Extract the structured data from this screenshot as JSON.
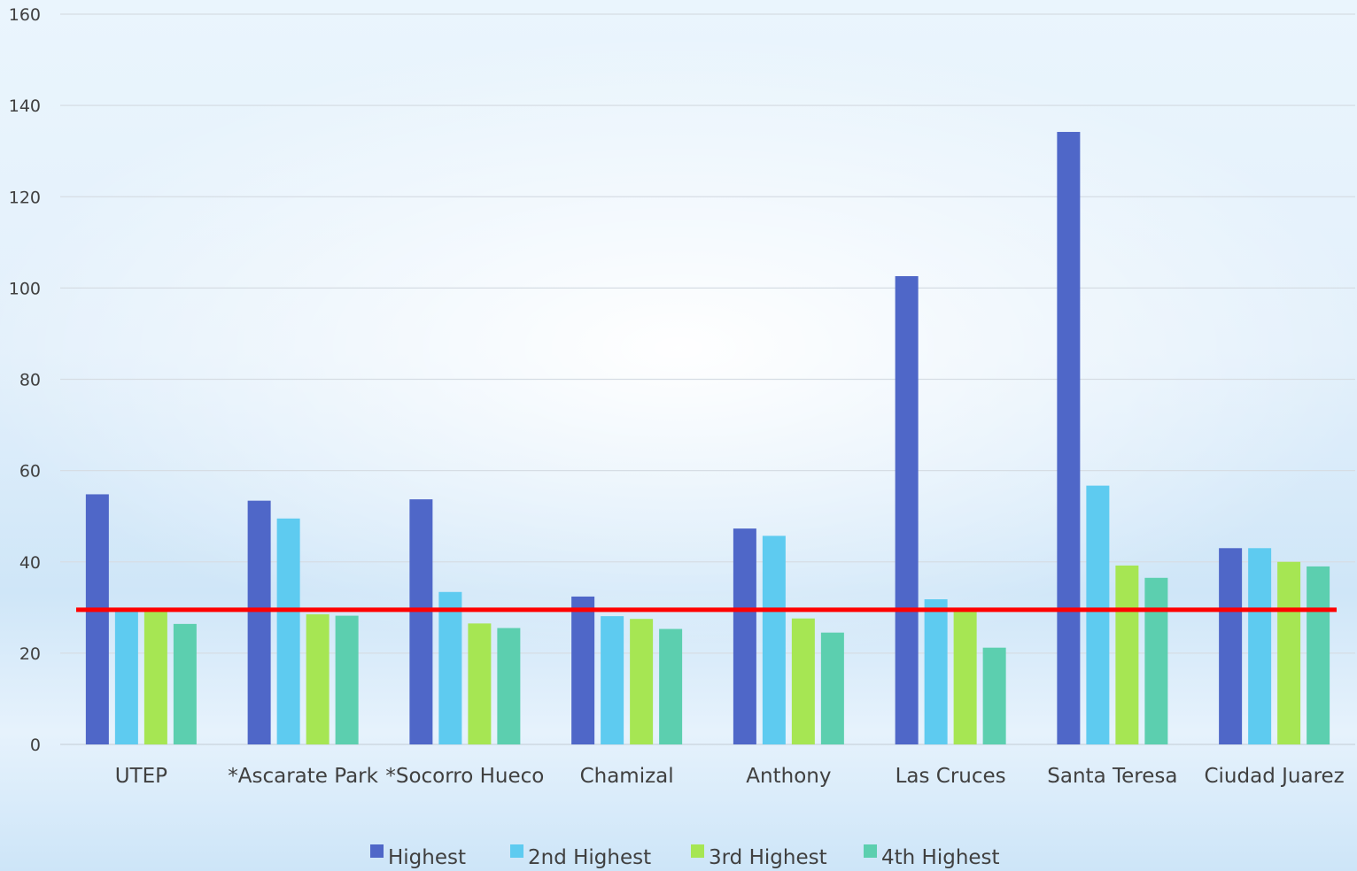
{
  "chart_data": {
    "type": "bar",
    "title": "",
    "xlabel": "",
    "ylabel": "",
    "ylim": [
      0,
      160
    ],
    "yticks": [
      0,
      20,
      40,
      60,
      80,
      100,
      120,
      140,
      160
    ],
    "grid": true,
    "legend_position": "bottom",
    "categories": [
      "UTEP",
      "*Ascarate Park",
      "*Socorro Hueco",
      "Chamizal",
      "Anthony",
      "Las Cruces",
      "Santa Teresa",
      "Ciudad Juarez"
    ],
    "series": [
      {
        "name": "Highest",
        "color": "#4f67c8",
        "values": [
          54.8,
          53.4,
          53.7,
          32.4,
          47.3,
          102.6,
          134.2,
          43.0
        ]
      },
      {
        "name": "2nd Highest",
        "color": "#5ecbf0",
        "values": [
          29.5,
          49.5,
          33.4,
          28.1,
          45.7,
          31.8,
          56.7,
          43.0
        ]
      },
      {
        "name": "3rd Highest",
        "color": "#a6e653",
        "values": [
          29.5,
          28.5,
          26.5,
          27.5,
          27.6,
          29.5,
          39.2,
          40.0
        ]
      },
      {
        "name": "4th Highest",
        "color": "#5ccfaf",
        "values": [
          26.4,
          28.2,
          25.5,
          25.3,
          24.5,
          21.2,
          36.5,
          39.0
        ]
      }
    ],
    "reference_line": {
      "value": 29.5,
      "color": "#ff0000"
    }
  }
}
